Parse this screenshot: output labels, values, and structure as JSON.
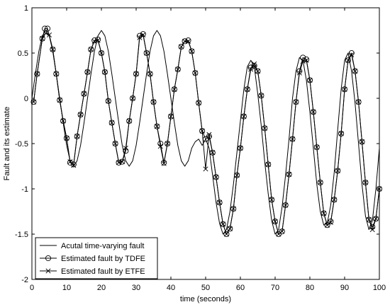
{
  "chart_data": {
    "type": "line",
    "title": "",
    "xlabel": "time (seconds)",
    "ylabel": "Fault and its estimate",
    "xlim": [
      0,
      100
    ],
    "ylim": [
      -2,
      1
    ],
    "xticks": [
      "0",
      "10",
      "20",
      "30",
      "40",
      "50",
      "60",
      "70",
      "80",
      "90",
      "100"
    ],
    "yticks": [
      "-2",
      "-1.5",
      "-1",
      "-0.5",
      "0",
      "0.5",
      "1"
    ],
    "grid": false,
    "legend_position": "bottom-left",
    "series": [
      {
        "name": "Acutal time-varying fault",
        "marker": "none",
        "color": "#000000",
        "x": [
          0,
          1,
          2,
          3,
          4,
          5,
          6,
          7,
          8,
          9,
          10,
          11,
          12,
          13,
          14,
          15,
          16,
          17,
          18,
          19,
          20,
          21,
          22,
          23,
          24,
          25,
          26,
          27,
          28,
          29,
          30,
          31,
          32,
          33,
          34,
          35,
          36,
          37,
          38,
          39,
          40,
          41,
          42,
          43,
          44,
          45,
          46,
          47,
          48,
          49,
          50,
          51,
          52,
          53,
          54,
          55,
          56,
          57,
          58,
          59,
          60,
          61,
          62,
          63,
          64,
          65,
          66,
          67,
          68,
          69,
          70,
          71,
          72,
          73,
          74,
          75,
          76,
          77,
          78,
          79,
          80,
          81,
          82,
          83,
          84,
          85,
          86,
          87,
          88,
          89,
          90,
          91,
          92,
          93,
          94,
          95,
          96,
          97,
          98,
          99,
          100
        ],
        "y": [
          0.0,
          0.27,
          0.52,
          0.69,
          0.75,
          0.69,
          0.52,
          0.27,
          0.0,
          -0.27,
          -0.52,
          -0.69,
          -0.75,
          -0.69,
          -0.52,
          -0.27,
          0.0,
          0.27,
          0.52,
          0.69,
          0.75,
          0.69,
          0.52,
          0.27,
          0.0,
          -0.27,
          -0.52,
          -0.69,
          -0.75,
          -0.69,
          -0.52,
          -0.27,
          0.0,
          0.27,
          0.52,
          0.69,
          0.75,
          0.69,
          0.52,
          0.27,
          0.0,
          -0.27,
          -0.52,
          -0.69,
          -0.75,
          -0.69,
          -0.55,
          -0.48,
          -0.45,
          -0.52,
          -0.45,
          -0.55,
          -0.85,
          -1.15,
          -1.38,
          -1.5,
          -1.45,
          -1.25,
          -0.95,
          -0.6,
          -0.25,
          0.1,
          0.35,
          0.42,
          0.35,
          0.05,
          -0.3,
          -0.7,
          -1.05,
          -1.35,
          -1.5,
          -1.45,
          -1.2,
          -0.85,
          -0.45,
          0.0,
          0.3,
          0.45,
          0.42,
          0.2,
          -0.15,
          -0.55,
          -0.95,
          -1.25,
          -1.4,
          -1.38,
          -1.18,
          -0.82,
          -0.35,
          0.1,
          0.42,
          0.5,
          0.3,
          -0.05,
          -0.5,
          -0.95,
          -1.3,
          -1.45,
          -1.35,
          -1.0,
          -0.55
        ]
      },
      {
        "name": "Estimated fault by  TDFE",
        "marker": "circle",
        "color": "#000000",
        "x": [
          0.5,
          1.5,
          3,
          3.7,
          4.5,
          6,
          7,
          8,
          9,
          10,
          11,
          12,
          13,
          14,
          15,
          16,
          17,
          18,
          19,
          20,
          21,
          22,
          23,
          24,
          25,
          26,
          27,
          28,
          29,
          30,
          31,
          32,
          33,
          34,
          35,
          36,
          37,
          38,
          39,
          40,
          41,
          42,
          43,
          44,
          45,
          46,
          47,
          48,
          49,
          50,
          51,
          52,
          53,
          54,
          55,
          56,
          57,
          58,
          59,
          60,
          61,
          62,
          63,
          64,
          65,
          66,
          67,
          68,
          69,
          70,
          71,
          72,
          73,
          74,
          75,
          76,
          77,
          78,
          79,
          80,
          81,
          82,
          83,
          84,
          85,
          86,
          87,
          88,
          89,
          90,
          91,
          92,
          93,
          94,
          95,
          96,
          97,
          98,
          99,
          100
        ],
        "y": [
          -0.04,
          0.27,
          0.66,
          0.77,
          0.77,
          0.54,
          0.27,
          -0.02,
          -0.25,
          -0.44,
          -0.71,
          -0.73,
          -0.42,
          -0.18,
          0.05,
          0.29,
          0.54,
          0.64,
          0.65,
          0.5,
          0.29,
          -0.03,
          -0.27,
          -0.5,
          -0.71,
          -0.7,
          -0.58,
          -0.25,
          0.0,
          0.27,
          0.69,
          0.71,
          0.5,
          0.27,
          -0.04,
          -0.31,
          -0.5,
          -0.71,
          -0.5,
          -0.2,
          0.1,
          0.32,
          0.57,
          0.63,
          0.64,
          0.52,
          0.28,
          -0.05,
          -0.36,
          -0.45,
          -0.42,
          -0.6,
          -0.87,
          -1.15,
          -1.39,
          -1.5,
          -1.44,
          -1.22,
          -0.85,
          -0.55,
          -0.2,
          0.1,
          0.34,
          0.36,
          0.3,
          0.03,
          -0.33,
          -0.73,
          -1.12,
          -1.36,
          -1.5,
          -1.47,
          -1.18,
          -0.84,
          -0.45,
          -0.04,
          0.3,
          0.45,
          0.43,
          0.2,
          -0.15,
          -0.54,
          -0.93,
          -1.27,
          -1.4,
          -1.36,
          -1.12,
          -0.8,
          -0.39,
          0.1,
          0.42,
          0.5,
          0.3,
          -0.04,
          -0.48,
          -0.93,
          -1.34,
          -1.42,
          -1.33,
          -1.0
        ]
      },
      {
        "name": "Estimated fault by  ETFE",
        "marker": "x",
        "color": "#000000",
        "x": [
          0.5,
          1.5,
          3,
          4,
          5,
          6,
          7,
          8,
          9,
          10,
          11,
          12,
          13,
          14,
          15,
          16,
          17,
          18,
          19,
          20,
          21,
          22,
          23,
          24,
          25,
          26,
          27,
          28,
          29,
          30,
          31,
          32,
          33,
          34,
          35,
          36,
          37,
          38,
          39,
          40,
          41,
          42,
          43,
          44,
          45,
          46,
          47,
          48,
          49,
          50,
          51,
          52,
          53,
          54,
          55,
          56,
          57,
          58,
          59,
          60,
          61,
          62,
          63,
          64,
          65,
          66,
          67,
          68,
          69,
          70,
          71,
          72,
          73,
          74,
          75,
          76,
          77,
          78,
          79,
          80,
          81,
          82,
          83,
          84,
          85,
          86,
          87,
          88,
          89,
          90,
          91,
          92,
          93,
          94,
          95,
          96,
          97,
          98,
          99,
          100
        ],
        "y": [
          -0.04,
          0.27,
          0.66,
          0.72,
          0.7,
          0.54,
          0.27,
          -0.02,
          -0.25,
          -0.44,
          -0.7,
          -0.74,
          -0.42,
          -0.18,
          0.05,
          0.29,
          0.54,
          0.63,
          0.64,
          0.5,
          0.29,
          -0.03,
          -0.27,
          -0.5,
          -0.71,
          -0.7,
          -0.55,
          -0.25,
          0.0,
          0.27,
          0.67,
          0.7,
          0.5,
          0.27,
          -0.04,
          -0.31,
          -0.53,
          -0.72,
          -0.5,
          -0.2,
          0.1,
          0.32,
          0.57,
          0.63,
          0.63,
          0.52,
          0.28,
          -0.05,
          -0.36,
          -0.78,
          -0.4,
          -0.6,
          -0.87,
          -1.15,
          -1.39,
          -1.5,
          -1.44,
          -1.22,
          -0.85,
          -0.55,
          -0.2,
          0.1,
          0.32,
          0.38,
          0.3,
          0.03,
          -0.33,
          -0.73,
          -1.12,
          -1.36,
          -1.5,
          -1.47,
          -1.18,
          -0.84,
          -0.45,
          -0.04,
          0.28,
          0.41,
          0.42,
          0.2,
          -0.15,
          -0.54,
          -0.93,
          -1.27,
          -1.4,
          -1.37,
          -1.12,
          -0.8,
          -0.39,
          0.1,
          0.42,
          0.48,
          0.3,
          -0.04,
          -0.48,
          -0.93,
          -1.34,
          -1.45,
          -1.33,
          -1.0
        ]
      }
    ]
  }
}
